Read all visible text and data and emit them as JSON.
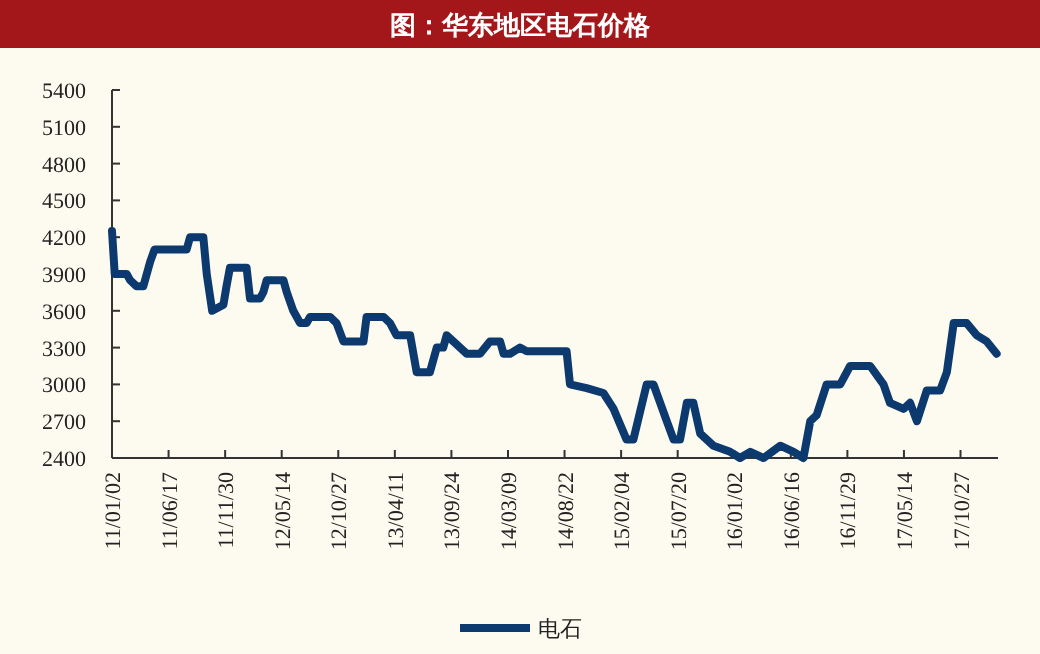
{
  "chart_data": {
    "type": "line",
    "title": "图：华东地区电石价格",
    "x": [
      "2011-01-02",
      "2011-01-10",
      "2011-02-14",
      "2011-02-24",
      "2011-03-15",
      "2011-04-04",
      "2011-04-24",
      "2011-05-07",
      "2011-08-09",
      "2011-08-19",
      "2011-09-27",
      "2011-10-07",
      "2011-10-23",
      "2011-11-25",
      "2011-12-04",
      "2011-12-14",
      "2012-02-01",
      "2012-02-11",
      "2012-03-11",
      "2012-03-21",
      "2012-03-31",
      "2012-05-19",
      "2012-05-29",
      "2012-06-17",
      "2012-07-07",
      "2012-07-26",
      "2012-08-05",
      "2012-10-03",
      "2012-10-22",
      "2012-11-11",
      "2013-01-09",
      "2013-01-18",
      "2013-03-09",
      "2013-03-28",
      "2013-04-16",
      "2013-05-26",
      "2013-06-14",
      "2013-07-23",
      "2013-08-12",
      "2013-08-31",
      "2013-09-10",
      "2013-09-30",
      "2013-11-08",
      "2013-12-17",
      "2014-01-15",
      "2014-02-14",
      "2014-02-24",
      "2014-03-15",
      "2014-04-13",
      "2014-05-03",
      "2014-08-28",
      "2014-09-07",
      "2014-10-26",
      "2014-12-14",
      "2015-01-13",
      "2015-02-20",
      "2015-03-12",
      "2015-04-20",
      "2015-05-10",
      "2015-06-18",
      "2015-07-08",
      "2015-07-27",
      "2015-08-16",
      "2015-09-04",
      "2015-09-24",
      "2015-11-02",
      "2015-12-21",
      "2016-01-19",
      "2016-02-18",
      "2016-03-28",
      "2016-05-16",
      "2016-06-24",
      "2016-07-23",
      "2016-08-12",
      "2016-08-31",
      "2016-09-29",
      "2016-11-08",
      "2016-12-07",
      "2017-02-04",
      "2017-03-15",
      "2017-04-03",
      "2017-05-13",
      "2017-06-01",
      "2017-06-21",
      "2017-07-20",
      "2017-08-28",
      "2017-09-17",
      "2017-10-07",
      "2017-11-14",
      "2017-12-14",
      "2018-01-12",
      "2018-02-10"
    ],
    "series": [
      {
        "name": "电石",
        "color": "#0d3a6e",
        "values": [
          4250,
          3900,
          3900,
          3850,
          3800,
          3800,
          4000,
          4100,
          4100,
          4200,
          4200,
          3900,
          3600,
          3650,
          3800,
          3950,
          3950,
          3700,
          3700,
          3750,
          3850,
          3850,
          3750,
          3600,
          3500,
          3500,
          3550,
          3550,
          3500,
          3350,
          3350,
          3550,
          3550,
          3500,
          3400,
          3400,
          3100,
          3100,
          3300,
          3300,
          3400,
          3350,
          3250,
          3250,
          3350,
          3350,
          3250,
          3250,
          3300,
          3270,
          3270,
          3000,
          2970,
          2930,
          2800,
          2550,
          2550,
          3000,
          3000,
          2700,
          2550,
          2550,
          2850,
          2850,
          2600,
          2500,
          2450,
          2400,
          2450,
          2400,
          2500,
          2450,
          2400,
          2700,
          2750,
          3000,
          3000,
          3150,
          3150,
          3000,
          2850,
          2800,
          2850,
          2700,
          2950,
          2950,
          3100,
          3500,
          3500,
          3400,
          3350,
          3250
        ]
      }
    ],
    "xlim": [
      "2011-01-02",
      "2018-02-14"
    ],
    "xticks": [
      {
        "value": "2011-01-02",
        "label": "11/01/02"
      },
      {
        "value": "2011-06-17",
        "label": "11/06/17"
      },
      {
        "value": "2011-11-30",
        "label": "11/11/30"
      },
      {
        "value": "2012-05-14",
        "label": "12/05/14"
      },
      {
        "value": "2012-10-27",
        "label": "12/10/27"
      },
      {
        "value": "2013-04-11",
        "label": "13/04/11"
      },
      {
        "value": "2013-09-24",
        "label": "13/09/24"
      },
      {
        "value": "2014-03-09",
        "label": "14/03/09"
      },
      {
        "value": "2014-08-22",
        "label": "14/08/22"
      },
      {
        "value": "2015-02-04",
        "label": "15/02/04"
      },
      {
        "value": "2015-07-20",
        "label": "15/07/20"
      },
      {
        "value": "2016-01-02",
        "label": "16/01/02"
      },
      {
        "value": "2016-06-16",
        "label": "16/06/16"
      },
      {
        "value": "2016-11-29",
        "label": "16/11/29"
      },
      {
        "value": "2017-05-14",
        "label": "17/05/14"
      },
      {
        "value": "2017-10-27",
        "label": "17/10/27"
      }
    ],
    "ylim": [
      2400,
      5400
    ],
    "yticks": [
      2400,
      2700,
      3000,
      3300,
      3600,
      3900,
      4200,
      4500,
      4800,
      5100,
      5400
    ],
    "legend": "bottom",
    "grid": false,
    "marker": "none",
    "line_style": "solid"
  }
}
